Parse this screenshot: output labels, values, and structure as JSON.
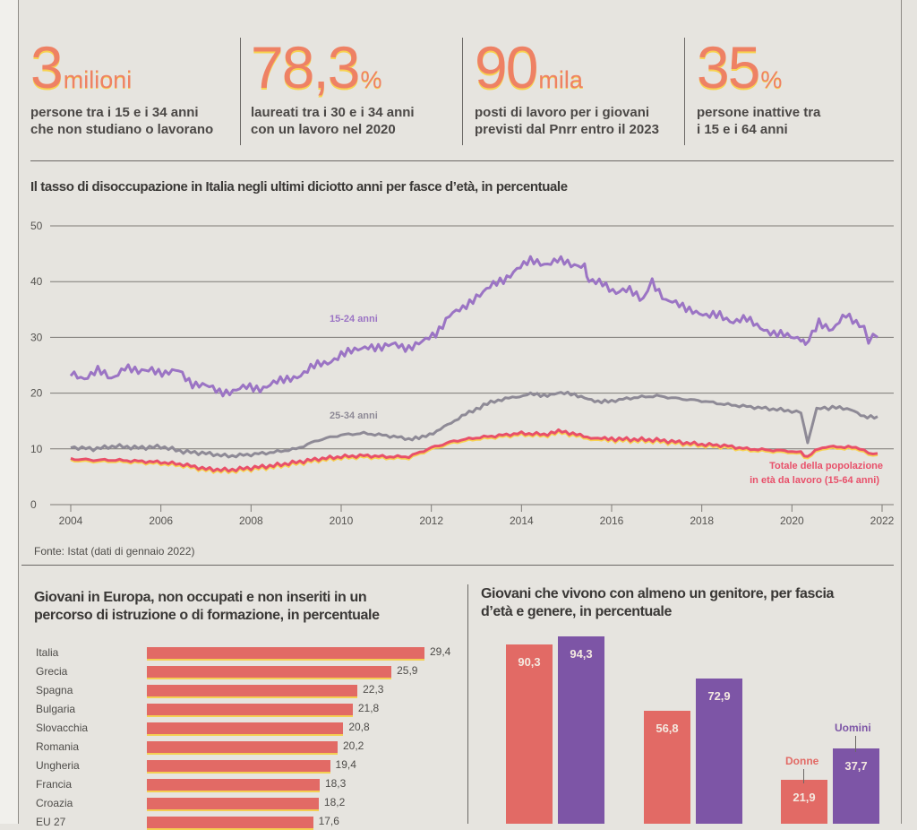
{
  "kpis": [
    {
      "value": "3",
      "unit": "milioni",
      "desc_line1": "persone tra i 15 e i 34 anni",
      "desc_line2": "che non studiano o lavorano"
    },
    {
      "value": "78,3",
      "unit": "%",
      "desc_line1": "laureati tra i 30 e i 34 anni",
      "desc_line2": "con un lavoro nel 2020"
    },
    {
      "value": "90",
      "unit": "mila",
      "desc_line1": "posti di lavoro per i giovani",
      "desc_line2": "previsti dal Pnrr entro il 2023"
    },
    {
      "value": "35",
      "unit": "%",
      "desc_line1": "persone inattive tra",
      "desc_line2": "i 15 e i 64 anni"
    }
  ],
  "colors": {
    "accent_orange": "#ee8164",
    "accent_yellow": "#f7d24f",
    "purple": "#9b74c4",
    "gray_line": "#8e8a96",
    "total_line": "#e8506a",
    "bar_red": "#e26a65",
    "bar_purple": "#7d55a6"
  },
  "chart_data": [
    {
      "type": "line",
      "title": "Il tasso di disoccupazione in Italia negli ultimi diciotto anni per fasce d’età, in percentuale",
      "xlabel": "",
      "ylabel": "",
      "xlim": [
        2004,
        2022
      ],
      "ylim": [
        0,
        50
      ],
      "x_ticks": [
        "2004",
        "2006",
        "2008",
        "2010",
        "2012",
        "2014",
        "2016",
        "2018",
        "2020",
        "2022"
      ],
      "y_ticks": [
        "0",
        "10",
        "20",
        "30",
        "40",
        "50"
      ],
      "grid": true,
      "source": "Fonte: Istat (dati di gennaio 2022)",
      "series": [
        {
          "name": "15-24 anni",
          "label": "15-24 anni",
          "x": [
            2004.0,
            2004.3,
            2004.6,
            2004.9,
            2005.2,
            2005.5,
            2005.8,
            2006.1,
            2006.4,
            2006.7,
            2007.0,
            2007.3,
            2007.6,
            2007.9,
            2008.2,
            2008.5,
            2008.8,
            2009.1,
            2009.4,
            2009.7,
            2010.0,
            2010.3,
            2010.6,
            2010.9,
            2011.2,
            2011.5,
            2011.8,
            2012.1,
            2012.4,
            2012.7,
            2013.0,
            2013.3,
            2013.6,
            2013.9,
            2014.2,
            2014.5,
            2014.8,
            2015.1,
            2015.4,
            2015.5,
            2015.8,
            2016.1,
            2016.4,
            2016.7,
            2016.9,
            2017.2,
            2017.5,
            2017.8,
            2018.1,
            2018.4,
            2018.7,
            2019.0,
            2019.3,
            2019.6,
            2019.9,
            2020.2,
            2020.3,
            2020.6,
            2020.9,
            2021.2,
            2021.5,
            2021.7,
            2021.9
          ],
          "values": [
            23.5,
            22.8,
            24.0,
            22.6,
            24.8,
            23.6,
            24.5,
            23.4,
            24.0,
            21.8,
            21.2,
            20.3,
            20.4,
            21.0,
            20.9,
            21.8,
            22.4,
            23.4,
            24.8,
            25.5,
            27.0,
            27.5,
            28.6,
            28.0,
            28.8,
            28.2,
            29.0,
            30.8,
            34.0,
            35.0,
            37.5,
            39.0,
            40.2,
            42.5,
            43.6,
            43.2,
            44.0,
            42.8,
            43.1,
            39.8,
            40.0,
            38.0,
            38.4,
            37.0,
            40.2,
            36.5,
            35.8,
            35.0,
            33.6,
            34.2,
            32.8,
            33.2,
            32.0,
            30.5,
            30.3,
            30.0,
            28.3,
            33.0,
            31.2,
            34.0,
            32.5,
            29.8,
            30.0
          ]
        },
        {
          "name": "25-34 anni",
          "label": "25-34 anni",
          "x": [
            2004.0,
            2004.5,
            2005.0,
            2005.5,
            2006.0,
            2006.5,
            2007.0,
            2007.5,
            2008.0,
            2008.5,
            2009.0,
            2009.5,
            2010.0,
            2010.5,
            2011.0,
            2011.5,
            2011.8,
            2012.2,
            2012.6,
            2013.0,
            2013.4,
            2013.8,
            2014.2,
            2014.5,
            2014.8,
            2015.1,
            2015.4,
            2015.7,
            2016.0,
            2016.5,
            2017.0,
            2017.5,
            2018.0,
            2018.5,
            2019.0,
            2019.5,
            2020.0,
            2020.2,
            2020.35,
            2020.55,
            2020.9,
            2021.3,
            2021.6,
            2021.9
          ],
          "values": [
            10.3,
            10.0,
            10.5,
            10.2,
            10.4,
            9.5,
            9.2,
            8.7,
            9.0,
            9.4,
            10.0,
            11.6,
            12.5,
            12.8,
            12.4,
            11.8,
            12.0,
            13.5,
            15.5,
            17.2,
            18.6,
            19.2,
            19.8,
            19.6,
            20.0,
            19.8,
            19.3,
            18.3,
            18.6,
            19.2,
            19.5,
            19.0,
            18.6,
            18.0,
            17.6,
            17.2,
            16.8,
            16.5,
            11.2,
            17.2,
            17.4,
            17.2,
            15.6,
            15.8
          ]
        },
        {
          "name": "Totale della popolazione in età da lavoro (15-64 anni)",
          "label_line1": "Totale della popolazione",
          "label_line2": "in età da lavoro (15-64 anni)",
          "x": [
            2004.0,
            2004.5,
            2005.0,
            2005.5,
            2006.0,
            2006.5,
            2007.0,
            2007.5,
            2008.0,
            2008.5,
            2009.0,
            2009.5,
            2010.0,
            2010.5,
            2011.0,
            2011.5,
            2012.0,
            2012.5,
            2013.0,
            2013.5,
            2014.0,
            2014.5,
            2014.9,
            2015.3,
            2015.7,
            2016.0,
            2016.5,
            2017.0,
            2017.5,
            2018.0,
            2018.5,
            2019.0,
            2019.5,
            2020.0,
            2020.2,
            2020.35,
            2020.6,
            2021.0,
            2021.5,
            2021.7,
            2021.9
          ],
          "values": [
            8.2,
            8.0,
            8.0,
            7.8,
            7.6,
            7.2,
            6.4,
            6.2,
            6.6,
            7.0,
            7.6,
            8.2,
            8.6,
            8.8,
            8.6,
            8.6,
            10.2,
            11.4,
            12.0,
            12.4,
            12.8,
            12.6,
            13.2,
            12.4,
            11.8,
            11.8,
            11.7,
            11.6,
            11.2,
            10.8,
            10.6,
            10.0,
            9.8,
            9.6,
            9.4,
            8.5,
            10.2,
            10.4,
            10.2,
            9.2,
            9.2
          ]
        }
      ]
    },
    {
      "type": "bar",
      "orientation": "horizontal",
      "title_line1": "Giovani in Europa, non occupati e non inseriti in un",
      "title_line2": "percorso di istruzione o di formazione, in percentuale",
      "categories": [
        "Italia",
        "Grecia",
        "Spagna",
        "Bulgaria",
        "Slovacchia",
        "Romania",
        "Ungheria",
        "Francia",
        "Croazia",
        "EU 27"
      ],
      "values": [
        29.4,
        25.9,
        22.3,
        21.8,
        20.8,
        20.2,
        19.4,
        18.3,
        18.2,
        17.6
      ],
      "value_labels": [
        "29,4",
        "25,9",
        "22,3",
        "21,8",
        "20,8",
        "20,2",
        "19,4",
        "18,3",
        "18,2",
        "17,6"
      ]
    },
    {
      "type": "bar",
      "orientation": "vertical",
      "title_line1": "Giovani che vivono con almeno un genitore, per fascia",
      "title_line2": "d’età e genere, in percentuale",
      "groups": 3,
      "legend": [
        "Donne",
        "Uomini"
      ],
      "series": [
        {
          "name": "Donne",
          "values": [
            90.3,
            56.8,
            21.9
          ],
          "value_labels": [
            "90,3",
            "56,8",
            "21,9"
          ]
        },
        {
          "name": "Uomini",
          "values": [
            94.3,
            72.9,
            37.7
          ],
          "value_labels": [
            "94,3",
            "72,9",
            "37,7"
          ]
        }
      ]
    }
  ]
}
